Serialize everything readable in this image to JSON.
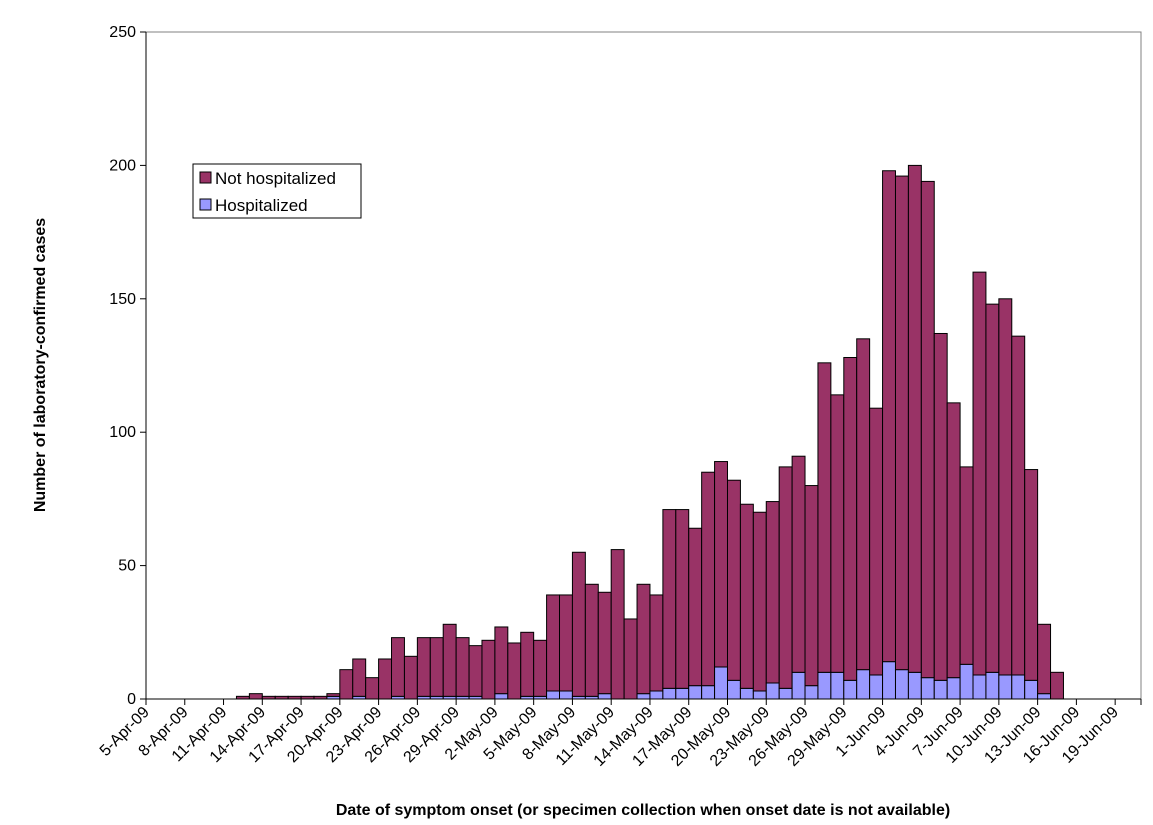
{
  "chart_data": {
    "type": "bar",
    "stacked": true,
    "xlabel": "Date of symptom onset (or specimen collection when onset date is not available)",
    "ylabel": "Number of laboratory-confirmed cases",
    "ylim": [
      0,
      250
    ],
    "yticks": [
      0,
      50,
      100,
      150,
      200,
      250
    ],
    "xtick_labels": [
      "5-Apr-09",
      "8-Apr-09",
      "11-Apr-09",
      "14-Apr-09",
      "17-Apr-09",
      "20-Apr-09",
      "23-Apr-09",
      "26-Apr-09",
      "29-Apr-09",
      "2-May-09",
      "5-May-09",
      "8-May-09",
      "11-May-09",
      "14-May-09",
      "17-May-09",
      "20-May-09",
      "23-May-09",
      "26-May-09",
      "29-May-09",
      "1-Jun-09",
      "4-Jun-09",
      "7-Jun-09",
      "10-Jun-09",
      "13-Jun-09",
      "16-Jun-09",
      "19-Jun-09"
    ],
    "x_start": "2009-04-05",
    "x_end": "2009-06-21",
    "categories": [
      "2009-04-12",
      "2009-04-13",
      "2009-04-14",
      "2009-04-15",
      "2009-04-16",
      "2009-04-17",
      "2009-04-18",
      "2009-04-19",
      "2009-04-20",
      "2009-04-21",
      "2009-04-22",
      "2009-04-23",
      "2009-04-24",
      "2009-04-25",
      "2009-04-26",
      "2009-04-27",
      "2009-04-28",
      "2009-04-29",
      "2009-04-30",
      "2009-05-01",
      "2009-05-02",
      "2009-05-03",
      "2009-05-04",
      "2009-05-05",
      "2009-05-06",
      "2009-05-07",
      "2009-05-08",
      "2009-05-09",
      "2009-05-10",
      "2009-05-11",
      "2009-05-12",
      "2009-05-13",
      "2009-05-14",
      "2009-05-15",
      "2009-05-16",
      "2009-05-17",
      "2009-05-18",
      "2009-05-19",
      "2009-05-20",
      "2009-05-21",
      "2009-05-22",
      "2009-05-23",
      "2009-05-24",
      "2009-05-25",
      "2009-05-26",
      "2009-05-27",
      "2009-05-28",
      "2009-05-29",
      "2009-05-30",
      "2009-05-31",
      "2009-06-01",
      "2009-06-02",
      "2009-06-03",
      "2009-06-04",
      "2009-06-05",
      "2009-06-06",
      "2009-06-07",
      "2009-06-08",
      "2009-06-09",
      "2009-06-10",
      "2009-06-11",
      "2009-06-12",
      "2009-06-13",
      "2009-06-14",
      "2009-06-15",
      "2009-06-16"
    ],
    "series": [
      {
        "name": "Not hospitalized",
        "color": "#993366",
        "values": [
          1,
          2,
          1,
          1,
          1,
          1,
          1,
          1,
          11,
          14,
          8,
          15,
          22,
          16,
          22,
          22,
          27,
          22,
          19,
          22,
          25,
          21,
          24,
          21,
          36,
          36,
          54,
          42,
          38,
          56,
          30,
          41,
          36,
          67,
          67,
          59,
          80,
          77,
          75,
          69,
          67,
          68,
          83,
          81,
          75,
          116,
          104,
          121,
          124,
          100,
          184,
          185,
          190,
          186,
          130,
          103,
          74,
          151,
          138,
          141,
          127,
          79,
          26,
          10,
          0,
          0
        ]
      },
      {
        "name": "Hospitalized",
        "color": "#9999ff",
        "values": [
          0,
          0,
          0,
          0,
          0,
          0,
          0,
          1,
          0,
          1,
          0,
          0,
          1,
          0,
          1,
          1,
          1,
          1,
          1,
          0,
          2,
          0,
          1,
          1,
          3,
          3,
          1,
          1,
          2,
          0,
          0,
          2,
          3,
          4,
          4,
          5,
          5,
          12,
          7,
          4,
          3,
          6,
          4,
          10,
          5,
          10,
          10,
          7,
          11,
          9,
          14,
          11,
          10,
          8,
          7,
          8,
          13,
          9,
          10,
          9,
          9,
          7,
          2,
          0,
          0,
          0
        ]
      }
    ],
    "legend": {
      "position": "upper-left",
      "entries": [
        "Not hospitalized",
        "Hospitalized"
      ]
    },
    "grid": false
  }
}
